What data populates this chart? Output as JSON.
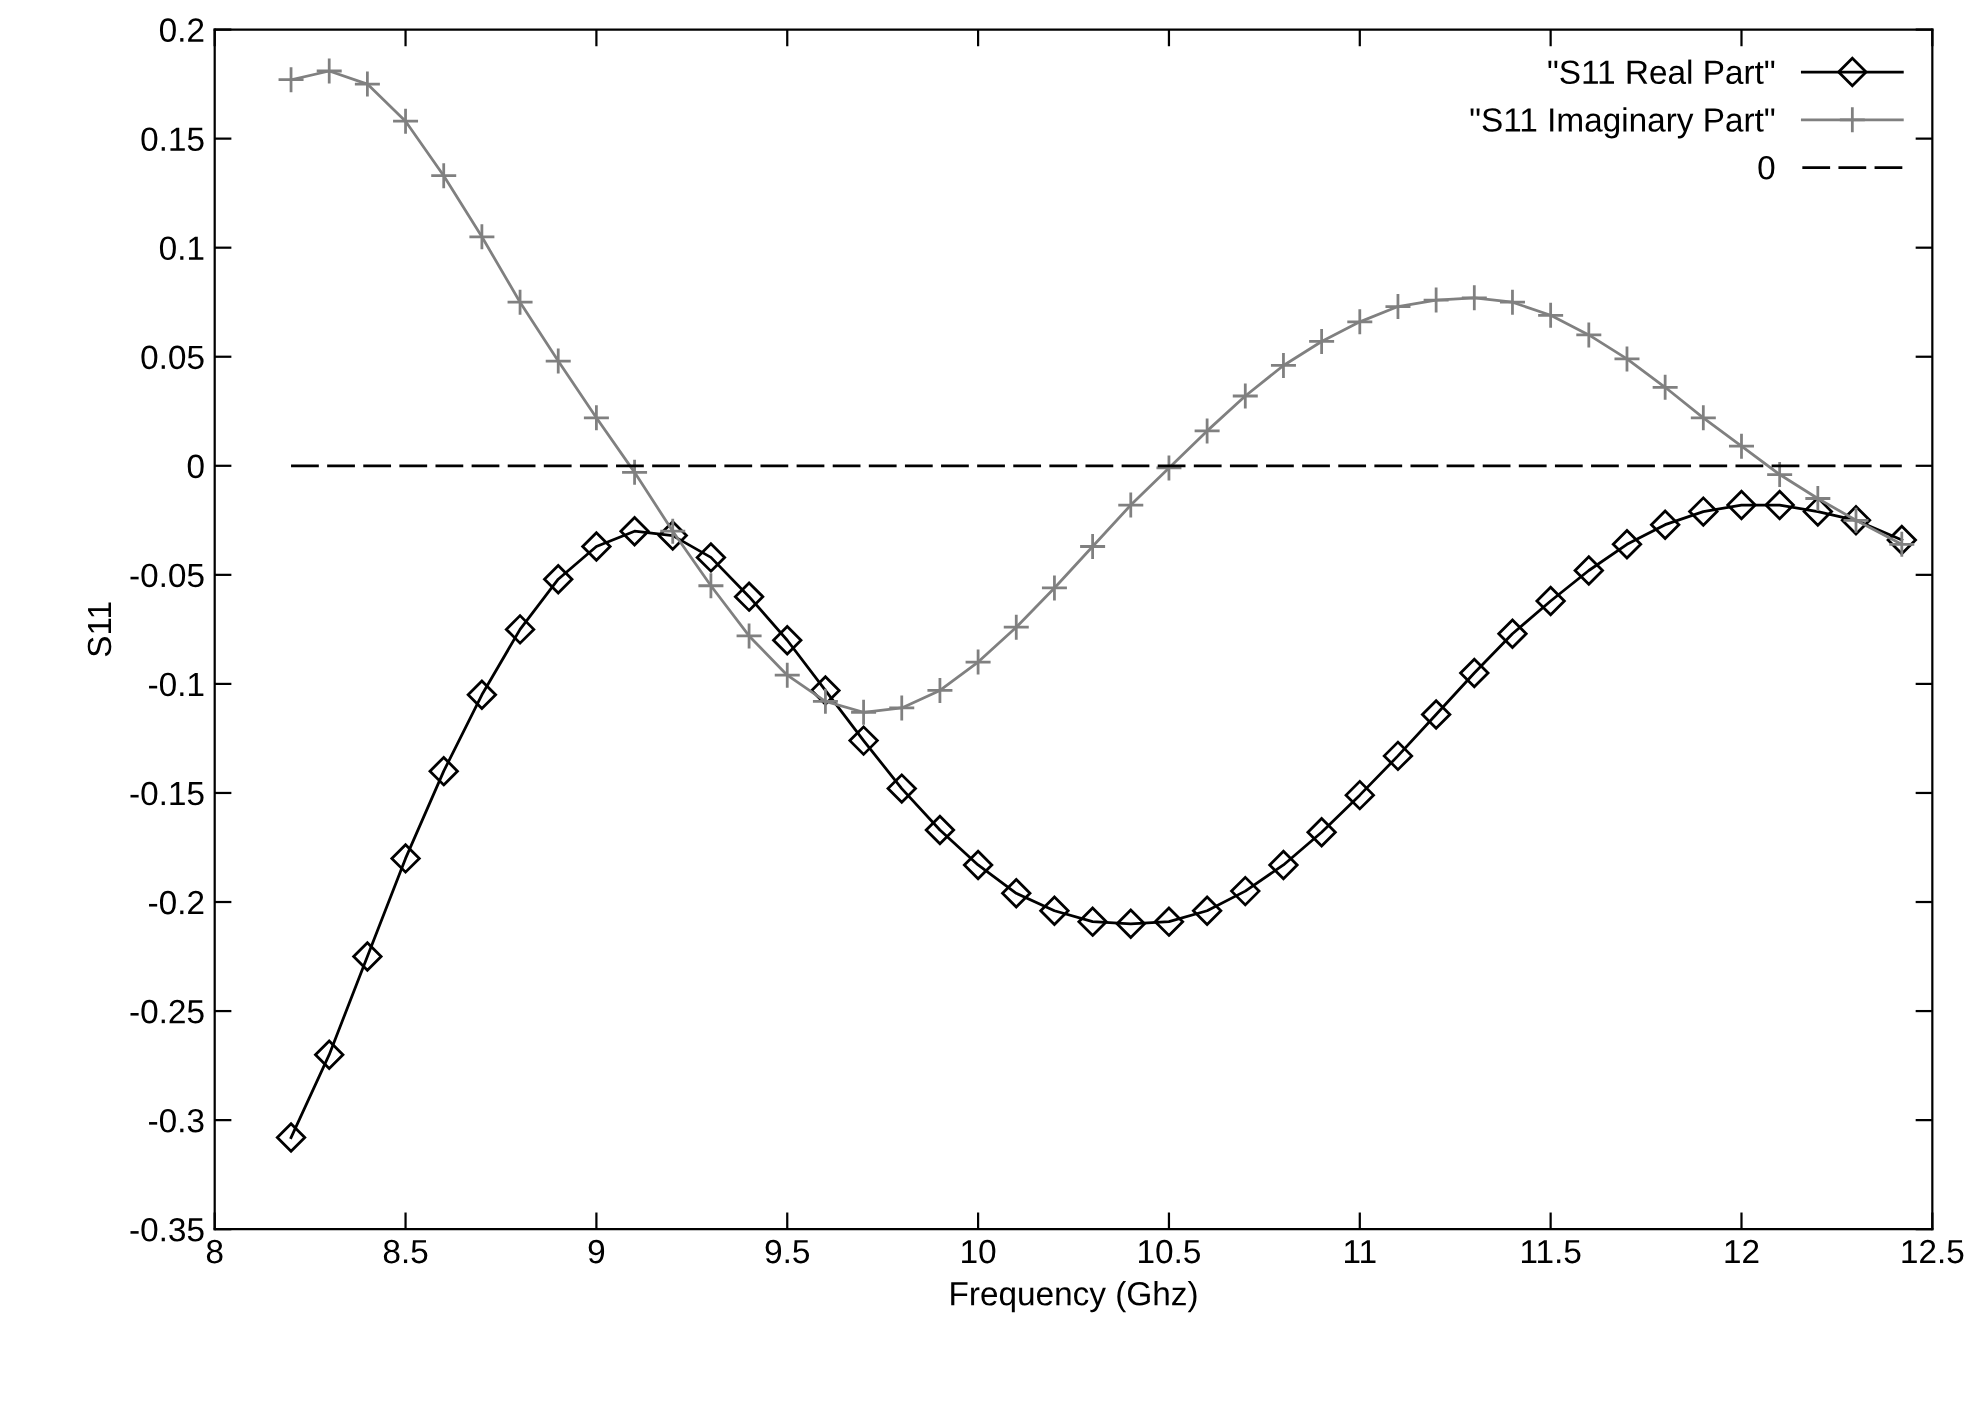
{
  "chart_data": {
    "type": "line",
    "xlabel": "Frequency (Ghz)",
    "ylabel": "S11",
    "xlim": [
      8,
      12.5
    ],
    "xticks": [
      8,
      8.5,
      9,
      9.5,
      10,
      10.5,
      11,
      11.5,
      12,
      12.5
    ],
    "ylim": [
      -0.35,
      0.2
    ],
    "yticks": [
      -0.35,
      -0.3,
      -0.25,
      -0.2,
      -0.15,
      -0.1,
      -0.05,
      0,
      0.05,
      0.1,
      0.15,
      0.2
    ],
    "grid": false,
    "legend": "top right",
    "series": [
      {
        "name": "\"S11 Real Part\"",
        "color": "#000000",
        "marker": "diamond",
        "line_style": "solid",
        "x": [
          8.2,
          8.3,
          8.4,
          8.5,
          8.6,
          8.7,
          8.8,
          8.9,
          9.0,
          9.1,
          9.2,
          9.3,
          9.4,
          9.5,
          9.6,
          9.7,
          9.8,
          9.9,
          10.0,
          10.1,
          10.2,
          10.3,
          10.4,
          10.5,
          10.6,
          10.7,
          10.8,
          10.9,
          11.0,
          11.1,
          11.2,
          11.3,
          11.4,
          11.5,
          11.6,
          11.7,
          11.8,
          11.9,
          12.0,
          12.1,
          12.2,
          12.3,
          12.42
        ],
        "values": [
          -0.308,
          -0.27,
          -0.225,
          -0.18,
          -0.14,
          -0.105,
          -0.075,
          -0.052,
          -0.037,
          -0.03,
          -0.032,
          -0.042,
          -0.06,
          -0.08,
          -0.103,
          -0.126,
          -0.148,
          -0.167,
          -0.183,
          -0.196,
          -0.204,
          -0.209,
          -0.21,
          -0.209,
          -0.204,
          -0.195,
          -0.183,
          -0.168,
          -0.151,
          -0.133,
          -0.114,
          -0.095,
          -0.077,
          -0.062,
          -0.048,
          -0.036,
          -0.027,
          -0.021,
          -0.018,
          -0.018,
          -0.021,
          -0.025,
          -0.034
        ]
      },
      {
        "name": "\"S11 Imaginary Part\"",
        "color": "#808080",
        "marker": "cross",
        "line_style": "solid",
        "x": [
          8.2,
          8.3,
          8.4,
          8.5,
          8.6,
          8.7,
          8.8,
          8.9,
          9.0,
          9.1,
          9.2,
          9.3,
          9.4,
          9.5,
          9.6,
          9.7,
          9.8,
          9.9,
          10.0,
          10.1,
          10.2,
          10.3,
          10.4,
          10.5,
          10.6,
          10.7,
          10.8,
          10.9,
          11.0,
          11.1,
          11.2,
          11.3,
          11.4,
          11.5,
          11.6,
          11.7,
          11.8,
          11.9,
          12.0,
          12.1,
          12.2,
          12.3,
          12.42
        ],
        "values": [
          0.177,
          0.181,
          0.175,
          0.158,
          0.133,
          0.105,
          0.075,
          0.048,
          0.022,
          -0.003,
          -0.03,
          -0.055,
          -0.078,
          -0.096,
          -0.108,
          -0.113,
          -0.111,
          -0.103,
          -0.09,
          -0.074,
          -0.056,
          -0.037,
          -0.018,
          -0.001,
          0.016,
          0.032,
          0.046,
          0.057,
          0.066,
          0.073,
          0.076,
          0.077,
          0.075,
          0.069,
          0.06,
          0.049,
          0.036,
          0.022,
          0.009,
          -0.004,
          -0.015,
          -0.025,
          -0.036
        ]
      },
      {
        "name": "0",
        "color": "#000000",
        "marker": "none",
        "line_style": "dashed",
        "x": [
          8.2,
          12.42
        ],
        "values": [
          0,
          0
        ]
      }
    ]
  }
}
